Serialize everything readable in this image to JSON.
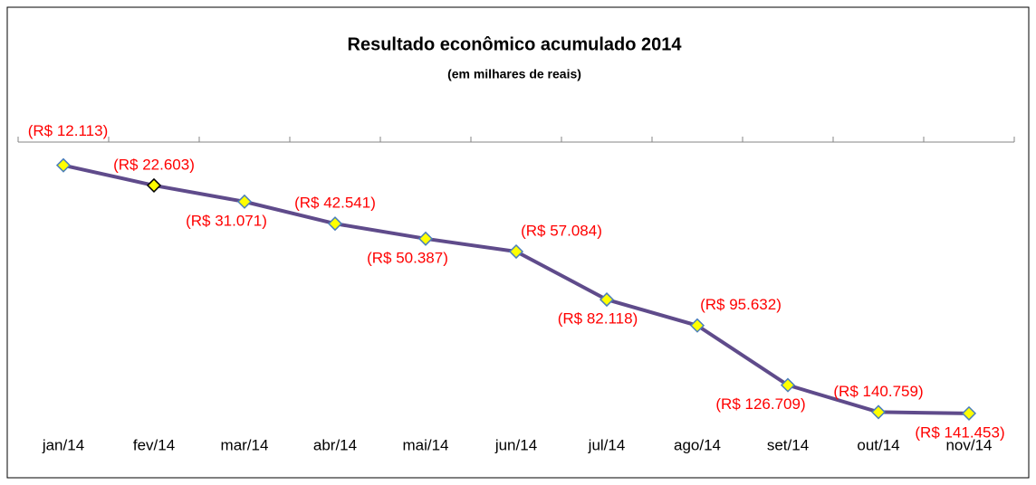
{
  "chart_data": {
    "type": "line",
    "title": "Resultado econômico acumulado 2014",
    "subtitle": "(em milhares de reais)",
    "categories": [
      "jan/14",
      "fev/14",
      "mar/14",
      "abr/14",
      "mai/14",
      "jun/14",
      "jul/14",
      "ago/14",
      "set/14",
      "out/14",
      "nov/14"
    ],
    "series": [
      {
        "color": "#5f4b8b",
        "marker_color": "#ffff00",
        "values": [
          -12113,
          -22603,
          -31071,
          -42541,
          -50387,
          -57084,
          -82118,
          -95632,
          -126709,
          -140759,
          -141453
        ],
        "value_labels": [
          "(R$ 12.113)",
          "(R$ 22.603)",
          "(R$ 31.071)",
          "(R$ 42.541)",
          "(R$ 50.387)",
          "(R$ 57.084)",
          "(R$ 82.118)",
          "(R$ 95.632)",
          "(R$ 126.709)",
          "(R$ 140.759)",
          "(R$ 141.453)"
        ]
      }
    ],
    "ylim": [
      -150000,
      0
    ]
  }
}
